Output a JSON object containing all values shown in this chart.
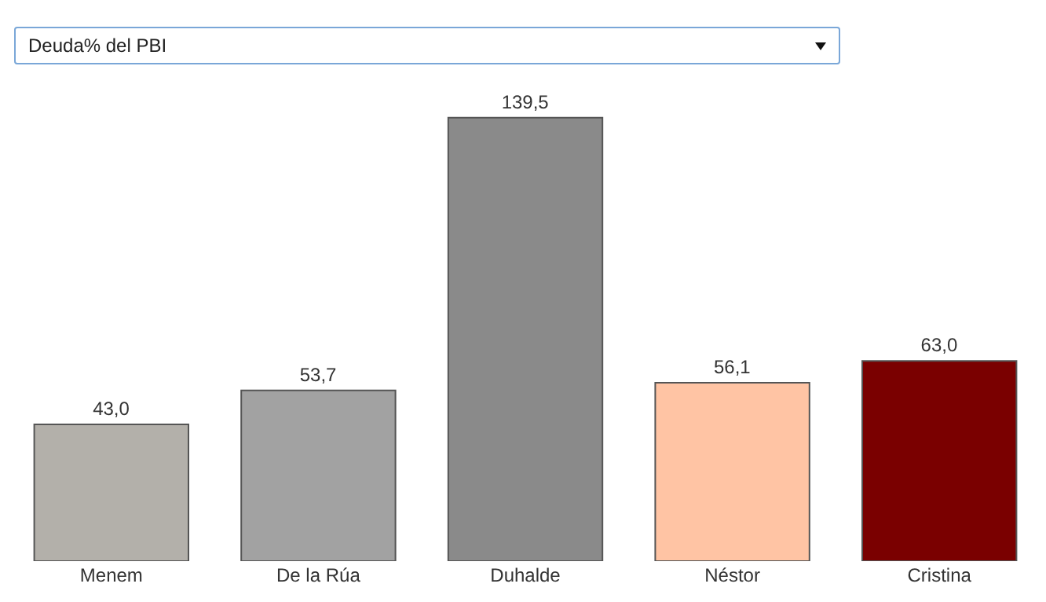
{
  "chart_data": {
    "type": "bar",
    "title": "Deuda% del PBI",
    "categories": [
      "Menem",
      "De la Rúa",
      "Duhalde",
      "Néstor",
      "Cristina"
    ],
    "values": [
      43.0,
      53.7,
      139.5,
      56.1,
      63.0
    ],
    "colors": [
      "#b3b0aa",
      "#a2a2a2",
      "#8a8a8a",
      "#ffc4a4",
      "#7a0000"
    ],
    "value_labels": [
      "43,0",
      "53,7",
      "139,5",
      "56,1",
      "63,0"
    ]
  }
}
